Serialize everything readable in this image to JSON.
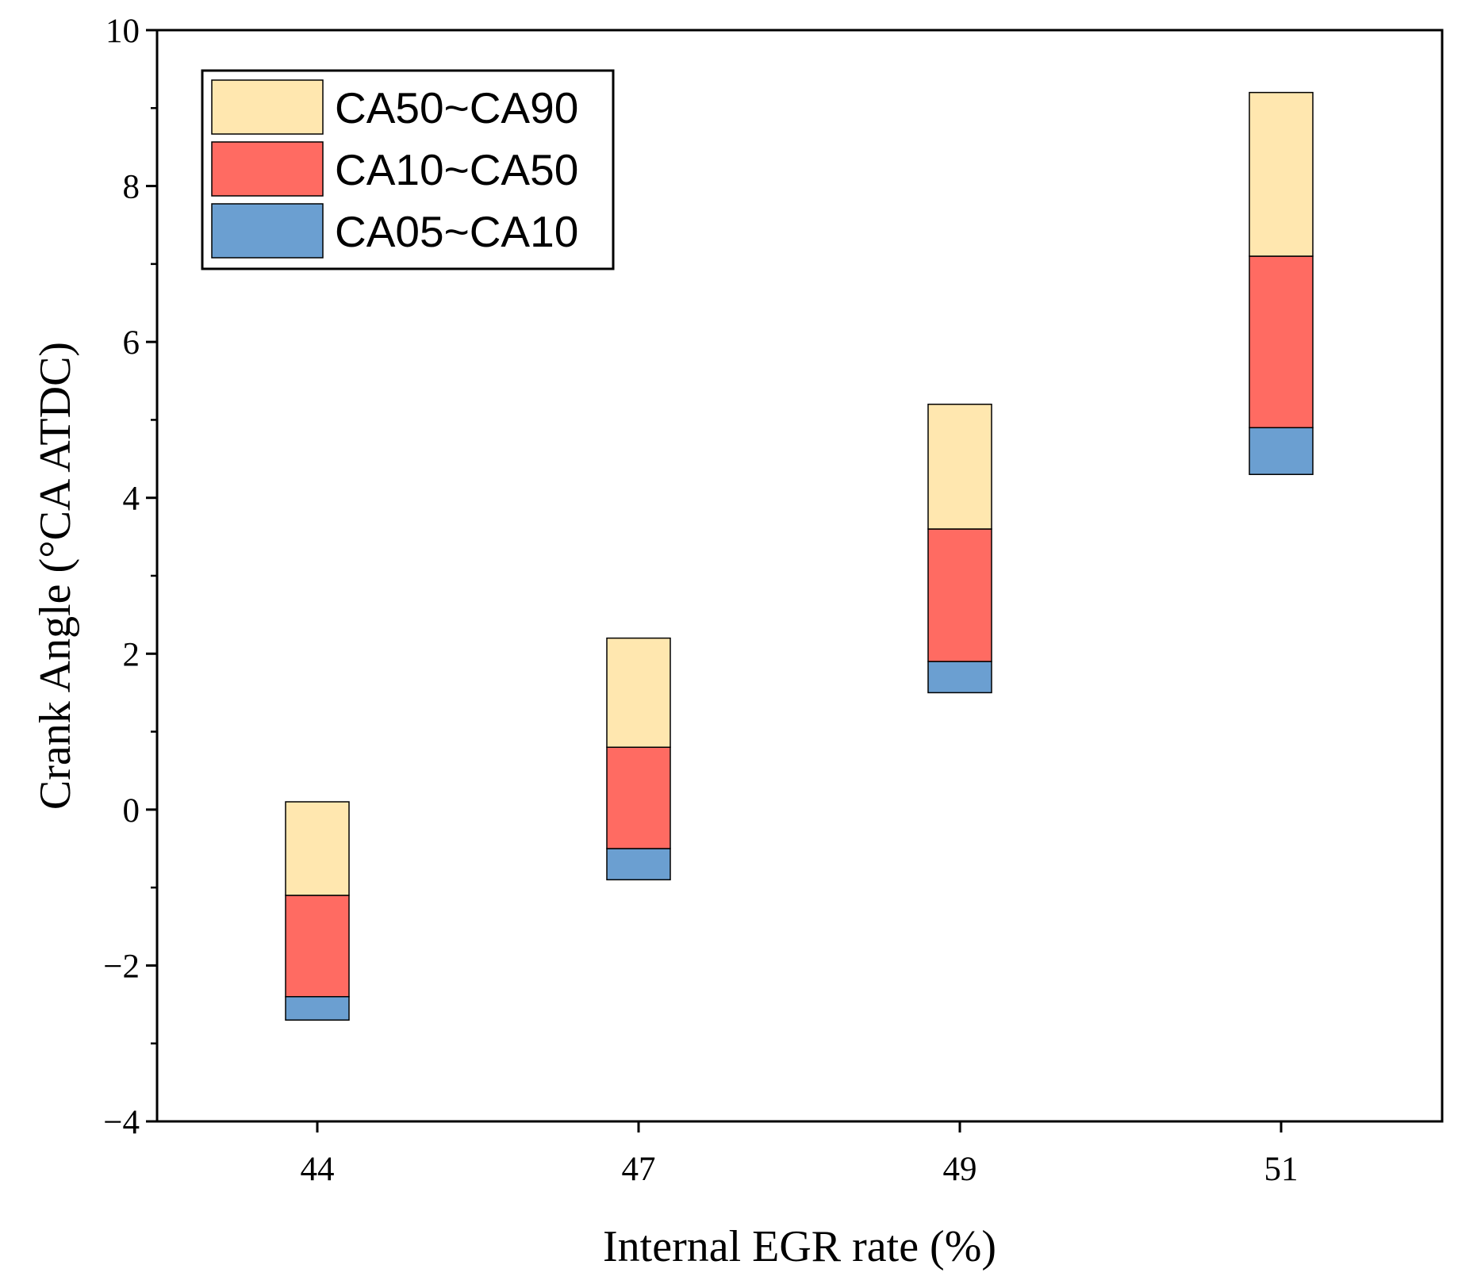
{
  "chart_data": {
    "type": "bar",
    "subtype": "floating-stacked",
    "title": "",
    "xlabel": "Internal EGR rate (%)",
    "ylabel": "Crank Angle (°CA ATDC)",
    "categories": [
      "44",
      "47",
      "49",
      "51"
    ],
    "ylim": [
      -4,
      10
    ],
    "yticks": [
      -4,
      -2,
      0,
      2,
      4,
      6,
      8,
      10
    ],
    "ytick_labels": [
      "−4",
      "−2",
      "0",
      "2",
      "4",
      "6",
      "8",
      "10"
    ],
    "grid": false,
    "legend_position": "top-left",
    "series": [
      {
        "name": "CA05~CA10",
        "color": "#6b9fd1",
        "bottoms": [
          -2.7,
          -0.9,
          1.5,
          4.3
        ],
        "tops": [
          -2.4,
          -0.5,
          1.9,
          4.9
        ]
      },
      {
        "name": "CA10~CA50",
        "color": "#ff6b62",
        "bottoms": [
          -2.4,
          -0.5,
          1.9,
          4.9
        ],
        "tops": [
          -1.1,
          0.8,
          3.6,
          7.1
        ]
      },
      {
        "name": "CA50~CA90",
        "color": "#ffe7af",
        "bottoms": [
          -1.1,
          0.8,
          3.6,
          7.1
        ],
        "tops": [
          0.1,
          2.2,
          5.2,
          9.2
        ]
      }
    ],
    "legend_order": [
      2,
      1,
      0
    ]
  }
}
